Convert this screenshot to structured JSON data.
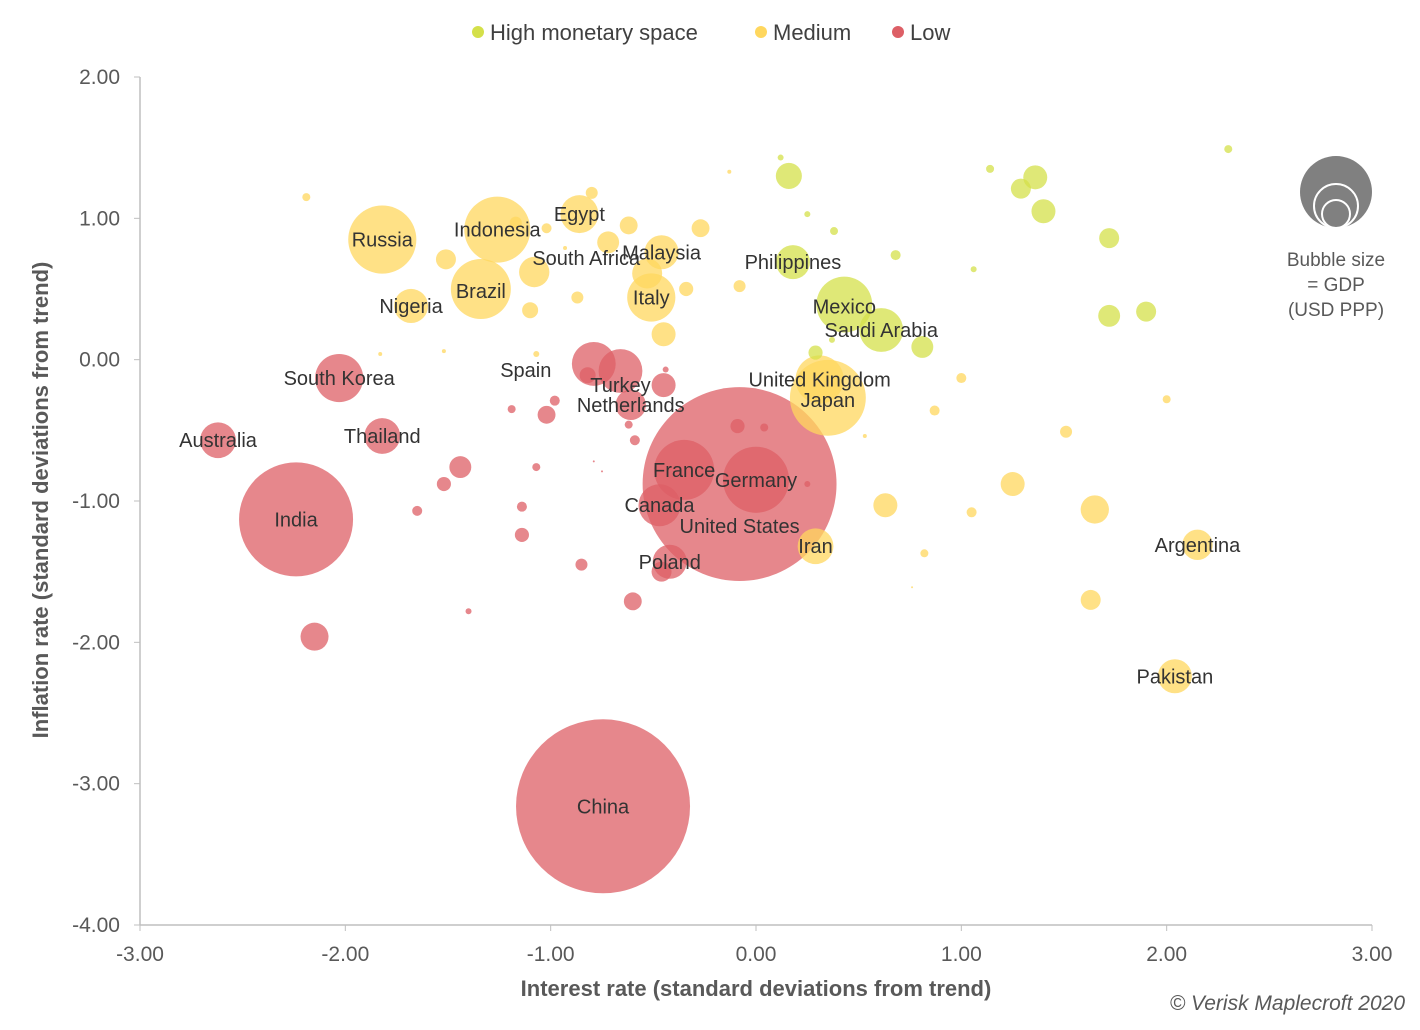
{
  "chart_data": {
    "type": "scatter",
    "subtype": "bubble",
    "xlabel": "Interest rate (standard deviations from trend)",
    "ylabel": "Inflation rate (standard deviations from trend)",
    "xlim": [
      -3,
      3
    ],
    "ylim": [
      -4,
      2
    ],
    "xticks": [
      "-3.00",
      "-2.00",
      "-1.00",
      "0.00",
      "1.00",
      "2.00",
      "3.00"
    ],
    "yticks": [
      "2.00",
      "1.00",
      "0.00",
      "-1.00",
      "-2.00",
      "-3.00",
      "-4.00"
    ],
    "grid": false,
    "legend_position": "top",
    "legend": [
      {
        "key": "high",
        "label": "High monetary space",
        "color": "#d4e04a"
      },
      {
        "key": "medium",
        "label": "Medium",
        "color": "#ffd75e"
      },
      {
        "key": "low",
        "label": "Low",
        "color": "#dd5f66"
      }
    ],
    "size_note": [
      "Bubble size",
      "= GDP",
      "(USD PPP)"
    ],
    "credit": "© Verisk Maplecroft 2020",
    "points": [
      {
        "name": "China",
        "x": -0.745,
        "y": -3.16,
        "size": 75.7,
        "group": "low"
      },
      {
        "name": "United States",
        "x": -0.08,
        "y": -0.88,
        "size": 94,
        "group": "low"
      },
      {
        "name": "India",
        "x": -2.24,
        "y": -1.13,
        "size": 32.5,
        "group": "low"
      },
      {
        "name": "Germany",
        "x": 0.0,
        "y": -0.85,
        "size": 10.9,
        "group": "low"
      },
      {
        "name": "France",
        "x": -0.35,
        "y": -0.78,
        "size": 9,
        "group": "low"
      },
      {
        "name": "South Korea",
        "x": -2.03,
        "y": -0.13,
        "size": 5.8,
        "group": "low"
      },
      {
        "name": "Turkey",
        "x": -0.66,
        "y": -0.08,
        "size": 4.8,
        "group": "low"
      },
      {
        "name": "Spain",
        "x": -0.79,
        "y": -0.03,
        "size": 4.8,
        "group": "low"
      },
      {
        "name": "Canada",
        "x": -0.47,
        "y": -1.03,
        "size": 4.4,
        "group": "low"
      },
      {
        "name": "Australia",
        "x": -2.62,
        "y": -0.57,
        "size": 3.2,
        "group": "low"
      },
      {
        "name": "Thailand",
        "x": -1.82,
        "y": -0.54,
        "size": 3.2,
        "group": "low"
      },
      {
        "name": "Poland",
        "x": -0.42,
        "y": -1.43,
        "size": 2.9,
        "group": "low"
      },
      {
        "name": "Netherlands",
        "x": -0.61,
        "y": -0.32,
        "size": 2.3,
        "group": "low"
      },
      {
        "name": "Japan",
        "x": 0.35,
        "y": -0.27,
        "size": 14.4,
        "group": "medium"
      },
      {
        "name": "Russia",
        "x": -1.82,
        "y": 0.85,
        "size": 11.6,
        "group": "medium"
      },
      {
        "name": "Indonesia",
        "x": -1.26,
        "y": 0.92,
        "size": 10.9,
        "group": "medium"
      },
      {
        "name": "Brazil",
        "x": -1.34,
        "y": 0.5,
        "size": 9,
        "group": "medium"
      },
      {
        "name": "United Kingdom",
        "x": 0.31,
        "y": -0.14,
        "size": 5.8,
        "group": "medium"
      },
      {
        "name": "Italy",
        "x": -0.51,
        "y": 0.44,
        "size": 5.8,
        "group": "medium"
      },
      {
        "name": "Iran",
        "x": 0.29,
        "y": -1.32,
        "size": 3.2,
        "group": "medium"
      },
      {
        "name": "Egypt",
        "x": -0.86,
        "y": 1.03,
        "size": 3.6,
        "group": "medium"
      },
      {
        "name": "South Africa",
        "x": -1.08,
        "y": 0.62,
        "size": 2.3,
        "group": "medium"
      },
      {
        "name": "Malaysia",
        "x": -0.46,
        "y": 0.76,
        "size": 2.9,
        "group": "medium"
      },
      {
        "name": "Nigeria",
        "x": -1.68,
        "y": 0.38,
        "size": 2.9,
        "group": "medium"
      },
      {
        "name": "Argentina",
        "x": 2.15,
        "y": -1.31,
        "size": 2.3,
        "group": "medium"
      },
      {
        "name": "Pakistan",
        "x": 2.04,
        "y": -2.24,
        "size": 2.9,
        "group": "medium"
      },
      {
        "name": "Mexico",
        "x": 0.43,
        "y": 0.39,
        "size": 7.8,
        "group": "high"
      },
      {
        "name": "Saudi Arabia",
        "x": 0.61,
        "y": 0.21,
        "size": 4.8,
        "group": "high"
      },
      {
        "name": "Philippines",
        "x": 0.18,
        "y": 0.69,
        "size": 2.9,
        "group": "high"
      },
      {
        "x": 0.12,
        "y": 1.43,
        "size": 0.09,
        "group": "high"
      },
      {
        "x": 0.16,
        "y": 1.3,
        "size": 1.7,
        "group": "high"
      },
      {
        "x": 0.25,
        "y": 1.03,
        "size": 0.09,
        "group": "high"
      },
      {
        "x": 0.38,
        "y": 0.91,
        "size": 0.16,
        "group": "high"
      },
      {
        "x": 0.68,
        "y": 0.74,
        "size": 0.25,
        "group": "high"
      },
      {
        "x": 1.06,
        "y": 0.64,
        "size": 0.09,
        "group": "high"
      },
      {
        "x": 1.14,
        "y": 1.35,
        "size": 0.16,
        "group": "high"
      },
      {
        "x": 1.29,
        "y": 1.21,
        "size": 1,
        "group": "high"
      },
      {
        "x": 1.36,
        "y": 1.29,
        "size": 1.44,
        "group": "high"
      },
      {
        "x": 1.4,
        "y": 1.05,
        "size": 1.44,
        "group": "high"
      },
      {
        "x": 1.72,
        "y": 0.86,
        "size": 1,
        "group": "high"
      },
      {
        "x": 1.72,
        "y": 0.31,
        "size": 1.2,
        "group": "high"
      },
      {
        "x": 1.9,
        "y": 0.34,
        "size": 1,
        "group": "high"
      },
      {
        "x": 2.3,
        "y": 1.49,
        "size": 0.16,
        "group": "high"
      },
      {
        "x": 0.29,
        "y": 0.05,
        "size": 0.5,
        "group": "high"
      },
      {
        "x": 0.81,
        "y": 0.09,
        "size": 1.2,
        "group": "high"
      },
      {
        "x": 0.37,
        "y": 0.14,
        "size": 0.09,
        "group": "high"
      },
      {
        "x": -2.19,
        "y": 1.15,
        "size": 0.16,
        "group": "medium"
      },
      {
        "x": -1.51,
        "y": 0.71,
        "size": 1,
        "group": "medium"
      },
      {
        "x": -1.17,
        "y": 0.97,
        "size": 0.36,
        "group": "medium"
      },
      {
        "x": -1.02,
        "y": 0.93,
        "size": 0.25,
        "group": "medium"
      },
      {
        "x": -0.93,
        "y": 0.79,
        "size": 0.04,
        "group": "medium"
      },
      {
        "x": -0.8,
        "y": 1.18,
        "size": 0.36,
        "group": "medium"
      },
      {
        "x": -0.62,
        "y": 0.95,
        "size": 0.8,
        "group": "medium"
      },
      {
        "x": -0.72,
        "y": 0.83,
        "size": 1.2,
        "group": "medium"
      },
      {
        "x": -0.87,
        "y": 0.44,
        "size": 0.36,
        "group": "medium"
      },
      {
        "x": -1.1,
        "y": 0.35,
        "size": 0.64,
        "group": "medium"
      },
      {
        "x": -0.53,
        "y": 0.61,
        "size": 2.25,
        "group": "medium"
      },
      {
        "x": -0.34,
        "y": 0.5,
        "size": 0.5,
        "group": "medium"
      },
      {
        "x": -0.45,
        "y": 0.18,
        "size": 1.44,
        "group": "medium"
      },
      {
        "x": -0.27,
        "y": 0.93,
        "size": 0.8,
        "group": "medium"
      },
      {
        "x": -0.13,
        "y": 1.33,
        "size": 0.04,
        "group": "medium"
      },
      {
        "x": -0.08,
        "y": 0.52,
        "size": 0.36,
        "group": "medium"
      },
      {
        "x": -1.07,
        "y": 0.04,
        "size": 0.09,
        "group": "medium"
      },
      {
        "x": -1.52,
        "y": 0.06,
        "size": 0.04,
        "group": "medium"
      },
      {
        "x": -1.83,
        "y": 0.04,
        "size": 0.04,
        "group": "medium"
      },
      {
        "x": 1.0,
        "y": -0.13,
        "size": 0.25,
        "group": "medium"
      },
      {
        "x": 0.87,
        "y": -0.36,
        "size": 0.25,
        "group": "medium"
      },
      {
        "x": 0.53,
        "y": -0.54,
        "size": 0.04,
        "group": "medium"
      },
      {
        "x": 1.51,
        "y": -0.51,
        "size": 0.36,
        "group": "medium"
      },
      {
        "x": 2.0,
        "y": -0.28,
        "size": 0.16,
        "group": "medium"
      },
      {
        "x": 1.25,
        "y": -0.88,
        "size": 1.44,
        "group": "medium"
      },
      {
        "x": 0.63,
        "y": -1.03,
        "size": 1.44,
        "group": "medium"
      },
      {
        "x": 1.05,
        "y": -1.08,
        "size": 0.25,
        "group": "medium"
      },
      {
        "x": 1.65,
        "y": -1.06,
        "size": 2.0,
        "group": "medium"
      },
      {
        "x": 0.82,
        "y": -1.37,
        "size": 0.16,
        "group": "medium"
      },
      {
        "x": 1.63,
        "y": -1.7,
        "size": 1,
        "group": "medium"
      },
      {
        "x": 0.76,
        "y": -1.61,
        "size": 0.01,
        "group": "medium"
      },
      {
        "x": -1.19,
        "y": -0.35,
        "size": 0.16,
        "group": "low"
      },
      {
        "x": -0.98,
        "y": -0.29,
        "size": 0.25,
        "group": "low"
      },
      {
        "x": -1.02,
        "y": -0.39,
        "size": 0.8,
        "group": "low"
      },
      {
        "x": -0.44,
        "y": -0.07,
        "size": 0.09,
        "group": "low"
      },
      {
        "x": -0.45,
        "y": -0.18,
        "size": 1.44,
        "group": "low"
      },
      {
        "x": -0.62,
        "y": -0.46,
        "size": 0.16,
        "group": "low"
      },
      {
        "x": -0.59,
        "y": -0.57,
        "size": 0.25,
        "group": "low"
      },
      {
        "x": -0.82,
        "y": -0.11,
        "size": 0.64,
        "group": "low"
      },
      {
        "x": -1.44,
        "y": -0.76,
        "size": 1.2,
        "group": "low"
      },
      {
        "x": -1.52,
        "y": -0.88,
        "size": 0.5,
        "group": "low"
      },
      {
        "x": -1.07,
        "y": -0.76,
        "size": 0.16,
        "group": "low"
      },
      {
        "x": -1.65,
        "y": -1.07,
        "size": 0.25,
        "group": "low"
      },
      {
        "x": -1.14,
        "y": -1.04,
        "size": 0.25,
        "group": "low"
      },
      {
        "x": -1.14,
        "y": -1.24,
        "size": 0.5,
        "group": "low"
      },
      {
        "x": -0.85,
        "y": -1.45,
        "size": 0.36,
        "group": "low"
      },
      {
        "x": -0.6,
        "y": -1.71,
        "size": 0.8,
        "group": "low"
      },
      {
        "x": -0.46,
        "y": -1.5,
        "size": 1,
        "group": "low"
      },
      {
        "x": -1.4,
        "y": -1.78,
        "size": 0.09,
        "group": "low"
      },
      {
        "x": -2.15,
        "y": -1.96,
        "size": 1.96,
        "group": "low"
      },
      {
        "x": -0.09,
        "y": -0.47,
        "size": 0.5,
        "group": "low"
      },
      {
        "x": 0.04,
        "y": -0.48,
        "size": 0.16,
        "group": "low"
      },
      {
        "x": 0.25,
        "y": -0.88,
        "size": 0.09,
        "group": "low"
      },
      {
        "x": -0.79,
        "y": -0.72,
        "size": 0.01,
        "group": "low"
      },
      {
        "x": -0.75,
        "y": -0.79,
        "size": 0.01,
        "group": "low"
      }
    ]
  }
}
